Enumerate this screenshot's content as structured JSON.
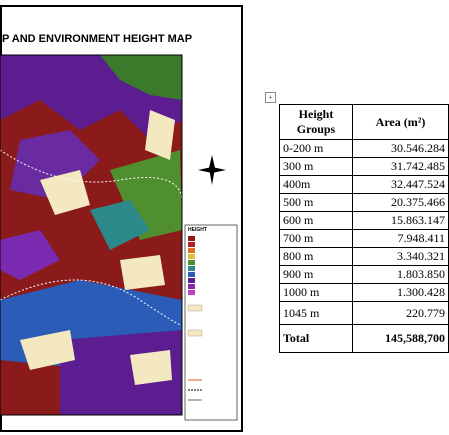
{
  "map": {
    "title": "P AND ENVIRONMENT HEIGHT MAP",
    "legend_title": "HEIGHT"
  },
  "table": {
    "header": [
      "Height Groups",
      "Area (m²)"
    ],
    "rows": [
      [
        "0-200 m",
        "30.546.284"
      ],
      [
        "300 m",
        "31.742.485"
      ],
      [
        "400m",
        "32.447.524"
      ],
      [
        "500 m",
        "20.375.466"
      ],
      [
        "600 m",
        "15.863.147"
      ],
      [
        "700 m",
        "7.948.411"
      ],
      [
        "800 m",
        "3.340.321"
      ],
      [
        "900 m",
        "1.803.850"
      ],
      [
        "1000 m",
        "1.300.428"
      ],
      [
        "1045 m",
        "220.779"
      ]
    ],
    "total": [
      "Total",
      "145,588,700"
    ]
  }
}
